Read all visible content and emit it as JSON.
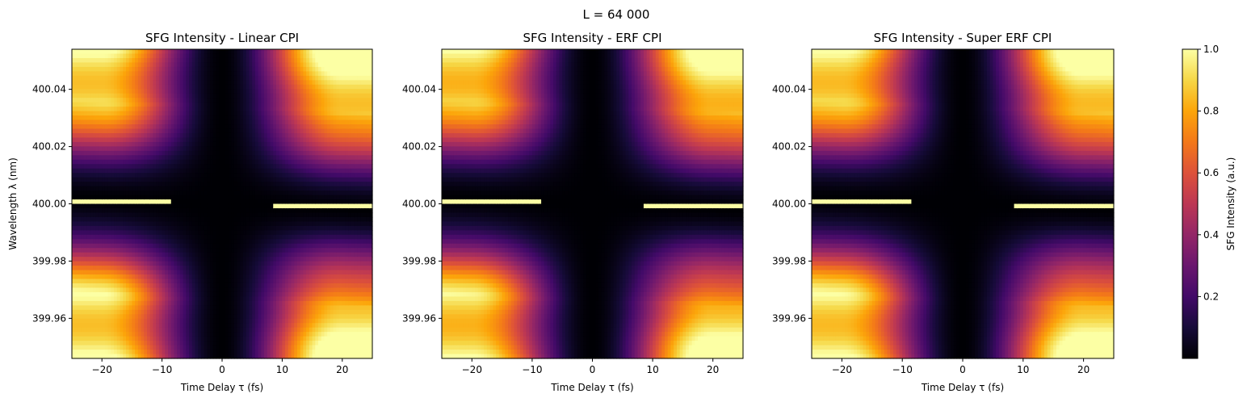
{
  "figure": {
    "suptitle": "L = 64 000"
  },
  "colorbar": {
    "label": "SFG Intensity (a.u.)",
    "range": [
      0.0,
      1.0
    ],
    "ticks": [
      0.2,
      0.4,
      0.6,
      0.8,
      1.0
    ],
    "tick_labels": [
      "0.2",
      "0.4",
      "0.6",
      "0.8",
      "1.0"
    ],
    "colormap": "inferno"
  },
  "chart_data": [
    {
      "type": "heatmap",
      "title": "SFG Intensity - Linear CPI",
      "xlabel": "Time Delay τ (fs)",
      "ylabel": "Wavelength λ (nm)",
      "xlim": [
        -25,
        25
      ],
      "ylim": [
        399.946,
        400.054
      ],
      "xticks": [
        -20,
        -10,
        0,
        10,
        20
      ],
      "xtick_labels": [
        "−20",
        "−10",
        "0",
        "10",
        "20"
      ],
      "yticks": [
        399.96,
        399.98,
        400.0,
        400.02,
        400.04
      ],
      "ytick_labels": [
        "399.96",
        "399.98",
        "400.00",
        "400.02",
        "400.04"
      ],
      "color_range": [
        0.0,
        1.0
      ],
      "variant": 0
    },
    {
      "type": "heatmap",
      "title": "SFG Intensity - ERF CPI",
      "xlabel": "Time Delay τ (fs)",
      "ylabel": "",
      "xlim": [
        -25,
        25
      ],
      "ylim": [
        399.946,
        400.054
      ],
      "xticks": [
        -20,
        -10,
        0,
        10,
        20
      ],
      "xtick_labels": [
        "−20",
        "−10",
        "0",
        "10",
        "20"
      ],
      "yticks": [
        399.96,
        399.98,
        400.0,
        400.02,
        400.04
      ],
      "ytick_labels": [
        "399.96",
        "399.98",
        "400.00",
        "400.02",
        "400.04"
      ],
      "color_range": [
        0.0,
        1.0
      ],
      "variant": 1
    },
    {
      "type": "heatmap",
      "title": "SFG Intensity - Super ERF CPI",
      "xlabel": "Time Delay τ (fs)",
      "ylabel": "",
      "xlim": [
        -25,
        25
      ],
      "ylim": [
        399.946,
        400.054
      ],
      "xticks": [
        -20,
        -10,
        0,
        10,
        20
      ],
      "xtick_labels": [
        "−20",
        "−10",
        "0",
        "10",
        "20"
      ],
      "yticks": [
        399.96,
        399.98,
        400.0,
        400.02,
        400.04
      ],
      "ytick_labels": [
        "399.96",
        "399.98",
        "400.00",
        "400.02",
        "400.04"
      ],
      "color_range": [
        0.0,
        1.0
      ],
      "variant": 2
    }
  ]
}
